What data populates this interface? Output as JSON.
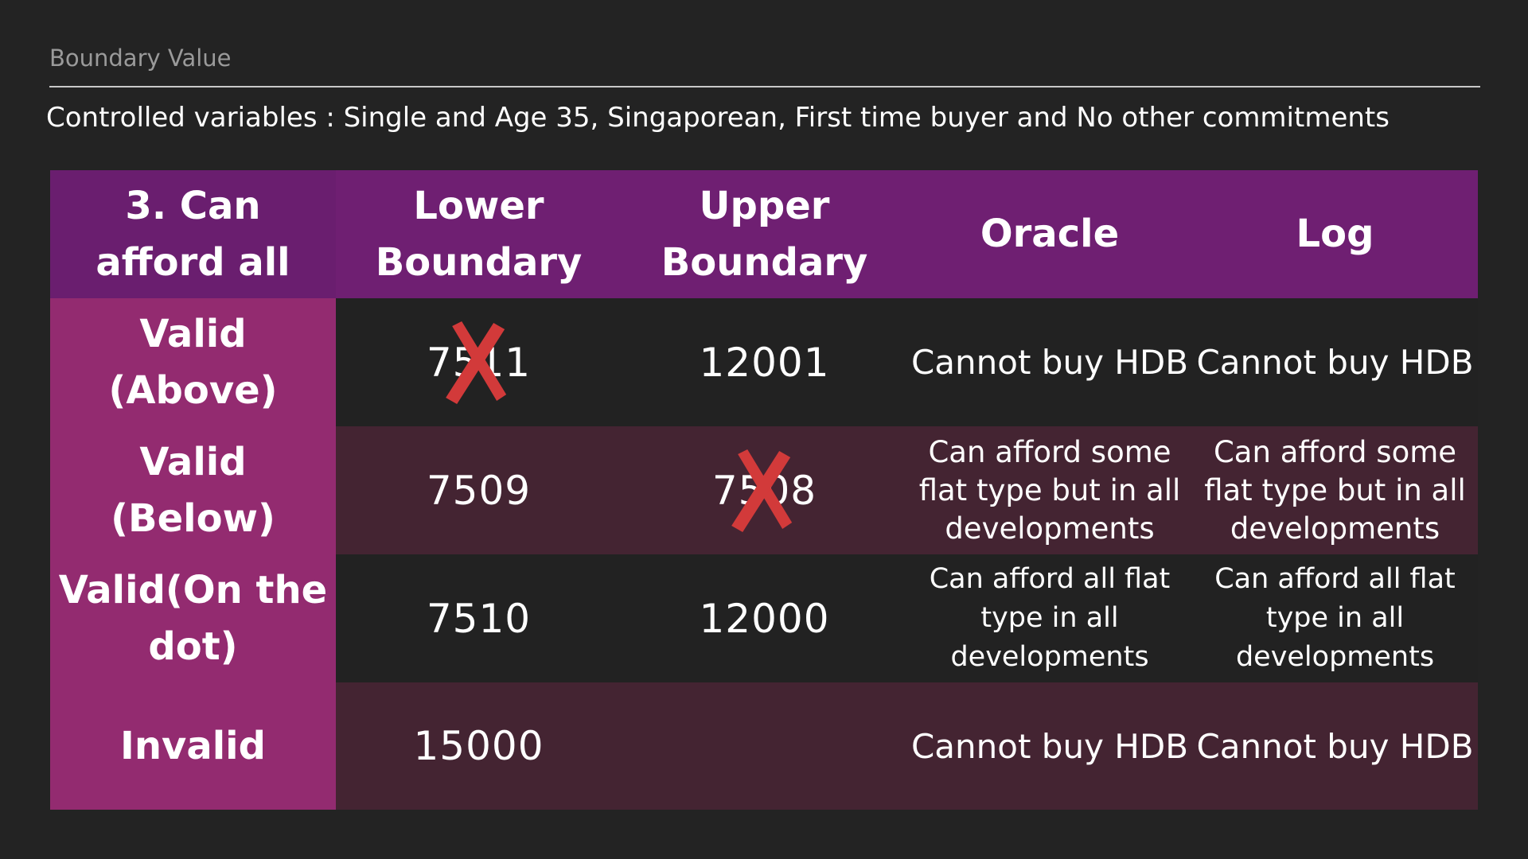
{
  "header": {
    "label": "Boundary Value",
    "subtitle": "Controlled variables : Single and Age 35, Singaporean, First time buyer and No other commitments"
  },
  "table": {
    "columns": [
      "3. Can afford all",
      "Lower Boundary",
      "Upper Boundary",
      "Oracle",
      "Log"
    ],
    "rows": [
      {
        "label": "Valid (Above)",
        "lower": "7511",
        "lower_crossed": true,
        "upper": "12001",
        "upper_crossed": false,
        "oracle": "Cannot buy HDB",
        "log": "Cannot buy HDB"
      },
      {
        "label": "Valid (Below)",
        "lower": "7509",
        "lower_crossed": false,
        "upper": "7508",
        "upper_crossed": true,
        "oracle": "Can afford some flat type but in all developments",
        "log": "Can afford some flat type but in all developments"
      },
      {
        "label": "Valid(On the dot)",
        "lower": "7510",
        "lower_crossed": false,
        "upper": "12000",
        "upper_crossed": false,
        "oracle": "Can afford all flat type in all developments",
        "log": "Can afford all flat type in all developments"
      },
      {
        "label": "Invalid",
        "lower": "15000",
        "lower_crossed": false,
        "upper": "",
        "upper_crossed": false,
        "oracle": "Cannot buy HDB",
        "log": "Cannot buy HDB"
      }
    ]
  },
  "colors": {
    "header_bg": "#6f1f72",
    "row_label_bg": "#932b70",
    "row_dark": "#222222",
    "row_maroon": "#442432",
    "cross": "#d23a3a"
  },
  "icons": {
    "cross": "red-x-mark-icon"
  }
}
